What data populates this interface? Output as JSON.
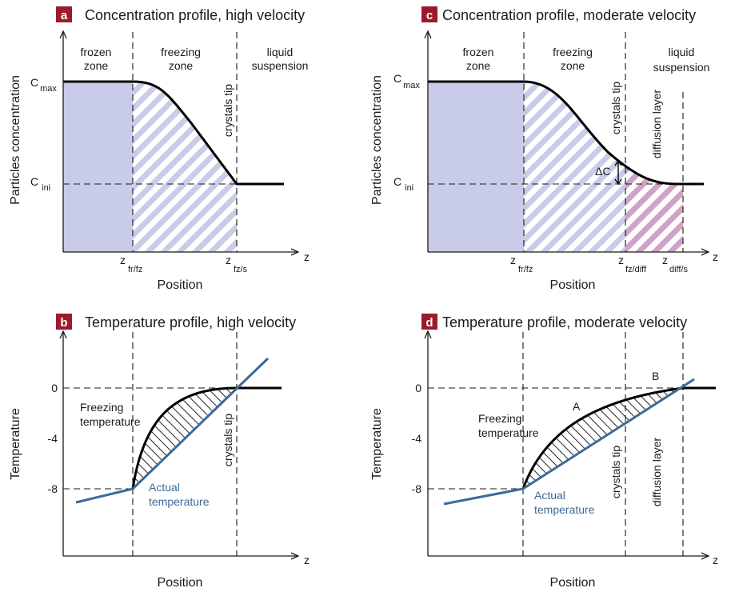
{
  "panels": [
    {
      "letter": "a",
      "title": "Concentration profile, high velocity",
      "y_label": "Particles concentration",
      "x_label": "Position",
      "axis_symbol": "z",
      "zones": [
        {
          "lines": [
            "frozen",
            "zone"
          ]
        },
        {
          "lines": [
            "freezing",
            "zone"
          ]
        },
        {
          "lines": [
            "liquid",
            "suspension"
          ]
        }
      ],
      "vertical_labels": [
        "crystals tip"
      ],
      "levels": [
        {
          "main": "C",
          "sub": "max"
        },
        {
          "main": "C",
          "sub": "ini"
        }
      ],
      "positions": [
        {
          "main": "z",
          "sub": "fr/fz"
        },
        {
          "main": "z",
          "sub": "fz/s"
        }
      ]
    },
    {
      "letter": "c",
      "title": "Concentration profile, moderate velocity",
      "y_label": "Particles concentration",
      "x_label": "Position",
      "axis_symbol": "z",
      "zones": [
        {
          "lines": [
            "frozen",
            "zone"
          ]
        },
        {
          "lines": [
            "freezing",
            "zone"
          ]
        },
        {
          "lines": [
            "liquid",
            "suspension"
          ]
        }
      ],
      "vertical_labels": [
        "crystals tip",
        "diffusion layer"
      ],
      "delta_label": "ΔC",
      "levels": [
        {
          "main": "C",
          "sub": "max"
        },
        {
          "main": "C",
          "sub": "ini"
        }
      ],
      "positions": [
        {
          "main": "z",
          "sub": "fr/fz"
        },
        {
          "main": "z",
          "sub": "fz/diff"
        },
        {
          "main": "z",
          "sub": "diff/s"
        }
      ]
    },
    {
      "letter": "b",
      "title": "Temperature profile, high velocity",
      "y_label": "Temperature",
      "x_label": "Position",
      "axis_symbol": "z",
      "ticks": [
        "0",
        "-4",
        "-8"
      ],
      "freezing_label": [
        "Freezing",
        "temperature"
      ],
      "actual_label": [
        "Actual",
        "temperature"
      ],
      "vertical_labels": [
        "crystals tip"
      ]
    },
    {
      "letter": "d",
      "title": "Temperature profile, moderate velocity",
      "y_label": "Temperature",
      "x_label": "Position",
      "axis_symbol": "z",
      "ticks": [
        "0",
        "-4",
        "-8"
      ],
      "freezing_label": [
        "Freezing",
        "temperature"
      ],
      "actual_label": [
        "Actual",
        "temperature"
      ],
      "region_labels": [
        "A",
        "B"
      ],
      "vertical_labels": [
        "crystals tip",
        "diffusion layer"
      ]
    }
  ]
}
